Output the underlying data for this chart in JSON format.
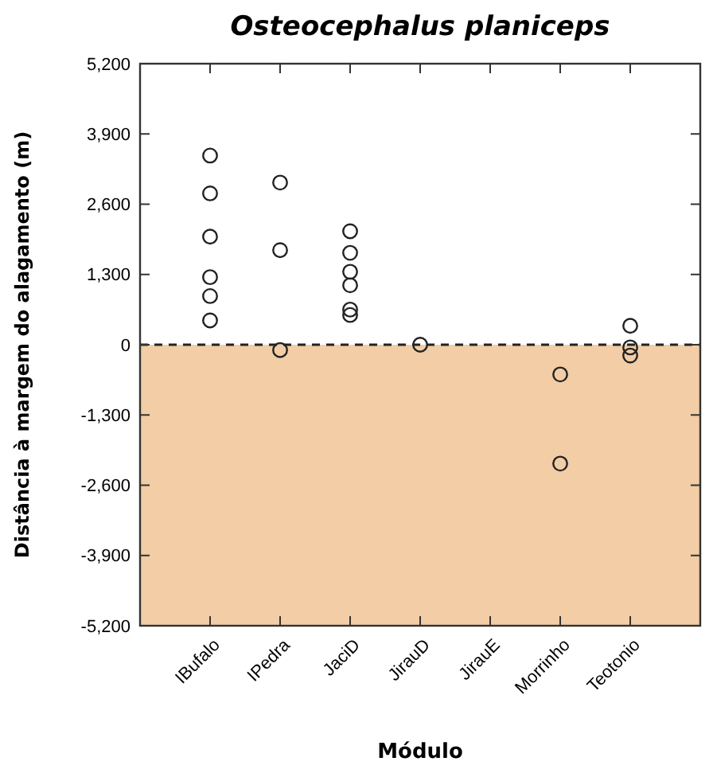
{
  "chart_data": {
    "type": "scatter",
    "title": "Osteocephalus planiceps",
    "xlabel": "Módulo",
    "ylabel": "Distância à margem do alagamento (m)",
    "categories": [
      "IBufalo",
      "IPedra",
      "JaciD",
      "JirauD",
      "JirauE",
      "Morrinho",
      "Teotonio"
    ],
    "series": [
      {
        "color": "#222222",
        "x": [
          "IBufalo",
          "IBufalo",
          "IBufalo",
          "IBufalo",
          "IBufalo",
          "IBufalo",
          "IPedra",
          "IPedra",
          "IPedra",
          "JaciD",
          "JaciD",
          "JaciD",
          "JaciD",
          "JaciD",
          "JaciD",
          "JirauD",
          "Morrinho",
          "Morrinho",
          "Teotonio",
          "Teotonio",
          "Teotonio"
        ],
        "values": [
          3500,
          2800,
          2000,
          1250,
          900,
          450,
          3000,
          1750,
          -100,
          2100,
          1700,
          1350,
          1100,
          650,
          550,
          0,
          -550,
          -2200,
          350,
          -50,
          -200
        ]
      }
    ],
    "marker": "circle",
    "ylim": [
      -5200,
      5200
    ],
    "yticks": [
      {
        "value": -5200,
        "label": "-5,200"
      },
      {
        "value": -3900,
        "label": "-3,900"
      },
      {
        "value": -2600,
        "label": "-2,600"
      },
      {
        "value": -1300,
        "label": "-1,300"
      },
      0,
      {
        "value": 1300,
        "label": "1,300"
      },
      {
        "value": 2600,
        "label": "2,600"
      },
      {
        "value": 3900,
        "label": "3,900"
      },
      {
        "value": 5200,
        "label": "5,200"
      }
    ],
    "grid": false,
    "ref_lines": [
      {
        "axis": "y",
        "value": 0,
        "color": "#222222",
        "line_style": "dashed"
      }
    ],
    "bands": [
      {
        "axis": "y",
        "from": -5200,
        "to": 0,
        "color": "#f2cda5"
      }
    ]
  }
}
